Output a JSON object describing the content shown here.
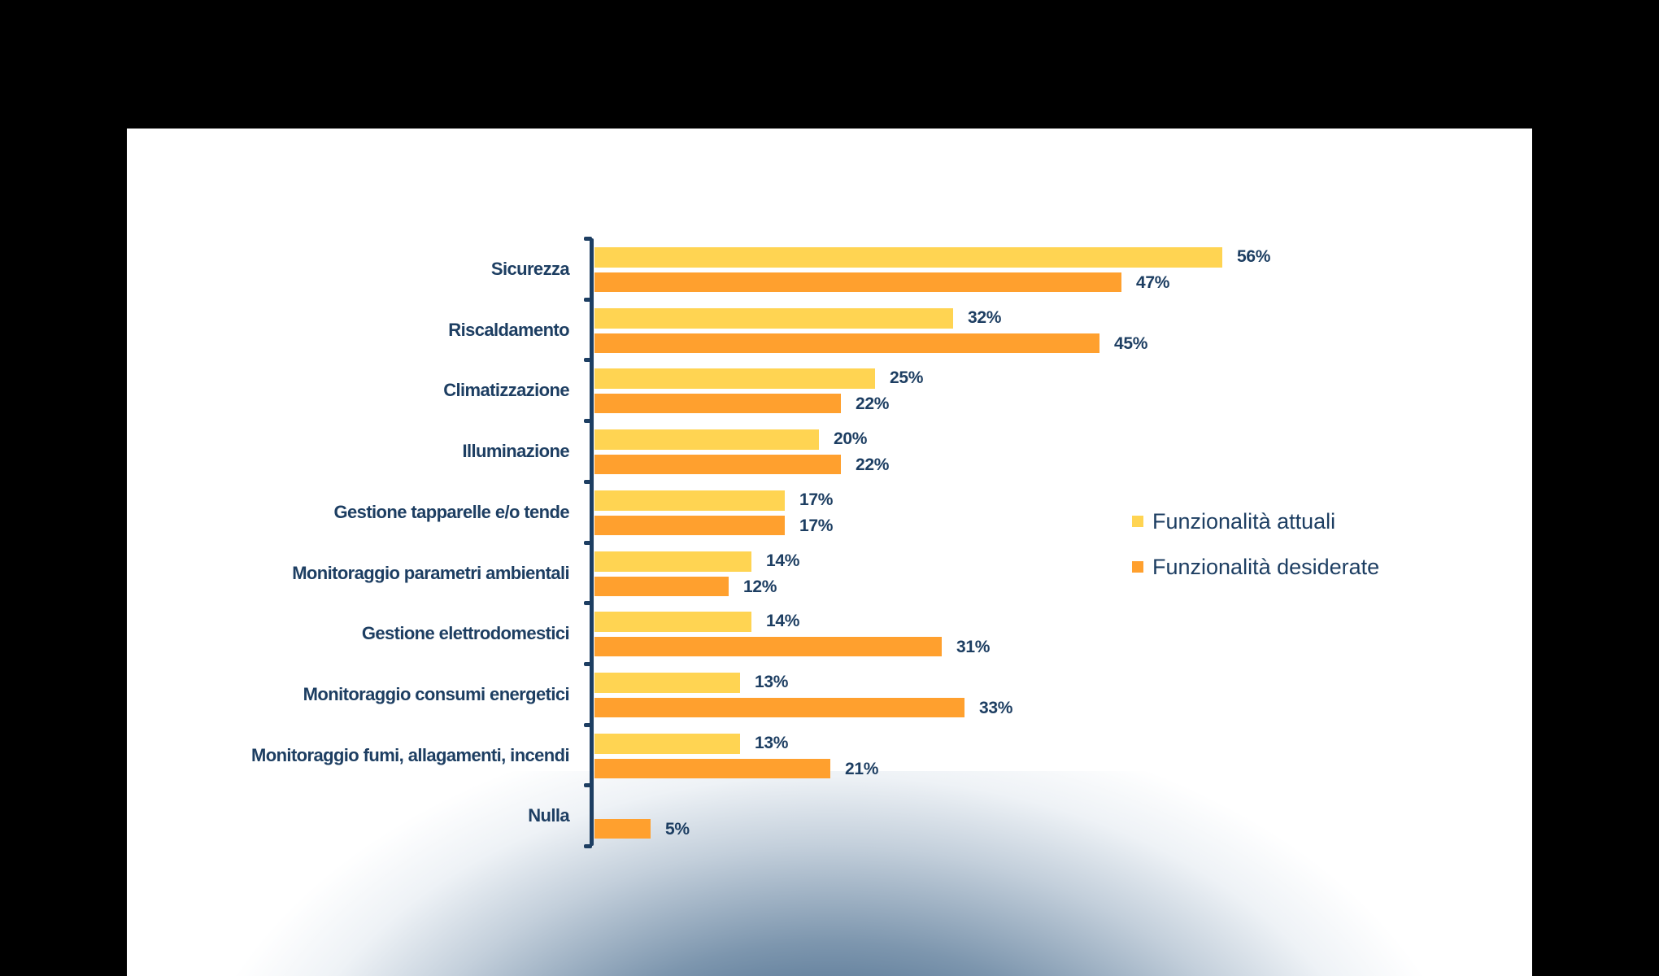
{
  "colors": {
    "current": "#FFD452",
    "desired": "#FFA02E",
    "text": "#1d3e62",
    "background_glow": "#2f5377"
  },
  "legend": {
    "current": "Funzionalità attuali",
    "desired": "Funzionalità desiderate"
  },
  "chart_data": {
    "type": "bar",
    "orientation": "horizontal",
    "title": "",
    "xlabel": "",
    "ylabel": "",
    "xlim": [
      0,
      60
    ],
    "grid": false,
    "legend_position": "right",
    "categories": [
      "Sicurezza",
      "Riscaldamento",
      "Climatizzazione",
      "Illuminazione",
      "Gestione tapparelle e/o tende",
      "Monitoraggio parametri ambientali",
      "Gestione elettrodomestici",
      "Monitoraggio consumi energetici",
      "Monitoraggio fumi, allagamenti, incendi",
      "Nulla"
    ],
    "series": [
      {
        "name": "Funzionalità attuali",
        "color": "#FFD452",
        "values": [
          56,
          32,
          25,
          20,
          17,
          14,
          14,
          13,
          13,
          null
        ]
      },
      {
        "name": "Funzionalità desiderate",
        "color": "#FFA02E",
        "values": [
          47,
          45,
          22,
          22,
          17,
          12,
          31,
          33,
          21,
          5
        ]
      }
    ],
    "value_labels": {
      "current": [
        "56%",
        "32%",
        "25%",
        "20%",
        "17%",
        "14%",
        "14%",
        "13%",
        "13%",
        ""
      ],
      "desired": [
        "47%",
        "45%",
        "22%",
        "22%",
        "17%",
        "12%",
        "31%",
        "33%",
        "21%",
        "5%"
      ]
    },
    "unit": "%"
  }
}
